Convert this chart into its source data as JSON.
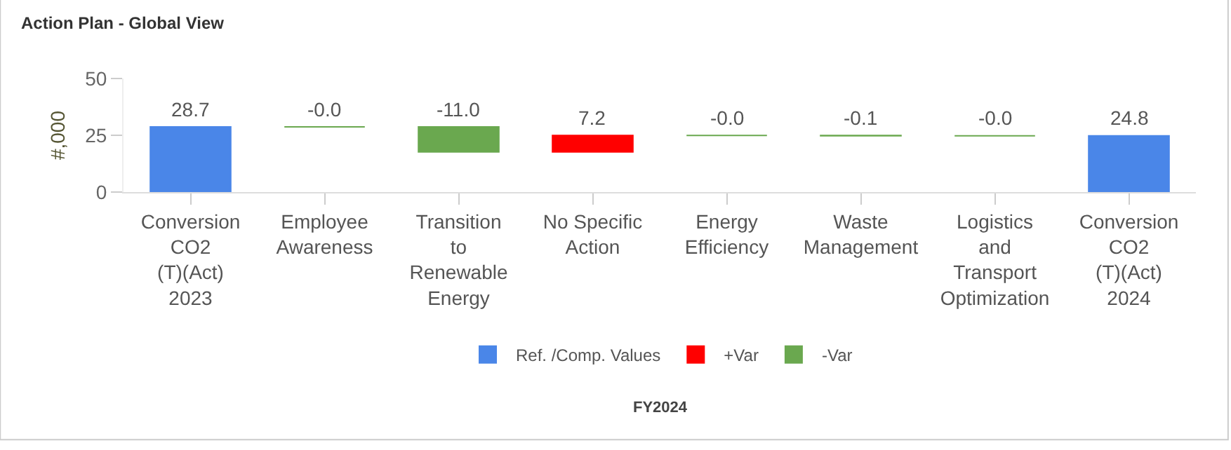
{
  "chart_data": {
    "type": "bar",
    "title": "Action Plan - Global View",
    "ylabel": "#,000",
    "categories": [
      "Conversion\nCO2\n(T)(Act)\n2023",
      "Employee\nAwareness",
      "Transition\nto\nRenewable\nEnergy",
      "No Specific\nAction",
      "Energy\nEfficiency",
      "Waste\nManagement",
      "Logistics\nand\nTransport\nOptimization",
      "Conversion\nCO2\n(T)(Act)\n2024"
    ],
    "series": [
      {
        "name": "Ref. /Comp. Values",
        "color": "#4a86e8",
        "values": [
          28.7,
          null,
          null,
          null,
          null,
          null,
          null,
          24.8
        ],
        "base": [
          0,
          null,
          null,
          null,
          null,
          null,
          null,
          0
        ]
      },
      {
        "name": "+Var",
        "color": "#ff0000",
        "values": [
          null,
          null,
          null,
          7.2,
          null,
          null,
          null,
          null
        ],
        "base": [
          null,
          null,
          null,
          17.7,
          null,
          null,
          null,
          null
        ]
      },
      {
        "name": "-Var",
        "color": "#6aa84f",
        "values": [
          null,
          0,
          -11.0,
          null,
          0,
          -0.1,
          0,
          null
        ],
        "base": [
          null,
          28.7,
          28.7,
          null,
          24.9,
          24.9,
          24.8,
          null
        ]
      }
    ],
    "value_labels": [
      "28.7",
      "-0.0",
      "-11.0",
      "7.2",
      "-0.0",
      "-0.1",
      "-0.0",
      "24.8"
    ],
    "ylim": [
      0,
      50
    ],
    "yticks": [
      0,
      25,
      50
    ],
    "legend": "bottom",
    "annotations": [
      "FY2024"
    ]
  }
}
